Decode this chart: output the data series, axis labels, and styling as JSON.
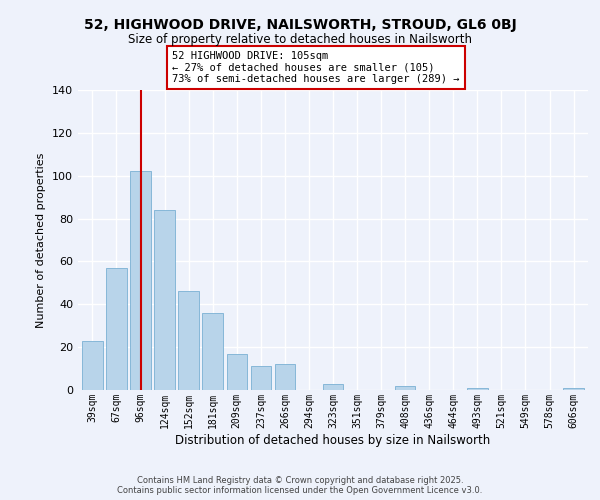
{
  "title": "52, HIGHWOOD DRIVE, NAILSWORTH, STROUD, GL6 0BJ",
  "subtitle": "Size of property relative to detached houses in Nailsworth",
  "xlabel": "Distribution of detached houses by size in Nailsworth",
  "ylabel": "Number of detached properties",
  "bar_labels": [
    "39sqm",
    "67sqm",
    "96sqm",
    "124sqm",
    "152sqm",
    "181sqm",
    "209sqm",
    "237sqm",
    "266sqm",
    "294sqm",
    "323sqm",
    "351sqm",
    "379sqm",
    "408sqm",
    "436sqm",
    "464sqm",
    "493sqm",
    "521sqm",
    "549sqm",
    "578sqm",
    "606sqm"
  ],
  "bar_values": [
    23,
    57,
    102,
    84,
    46,
    36,
    17,
    11,
    12,
    0,
    3,
    0,
    0,
    2,
    0,
    0,
    1,
    0,
    0,
    0,
    1
  ],
  "bar_color": "#b8d4ea",
  "bar_edge_color": "#7ab0d4",
  "vline_x": 2,
  "vline_color": "#cc0000",
  "annotation_text": "52 HIGHWOOD DRIVE: 105sqm\n← 27% of detached houses are smaller (105)\n73% of semi-detached houses are larger (289) →",
  "annotation_box_color": "#ffffff",
  "annotation_box_edge": "#cc0000",
  "ylim": [
    0,
    140
  ],
  "yticks": [
    0,
    20,
    40,
    60,
    80,
    100,
    120,
    140
  ],
  "background_color": "#eef2fb",
  "grid_color": "#ffffff",
  "footer_line1": "Contains HM Land Registry data © Crown copyright and database right 2025.",
  "footer_line2": "Contains public sector information licensed under the Open Government Licence v3.0."
}
